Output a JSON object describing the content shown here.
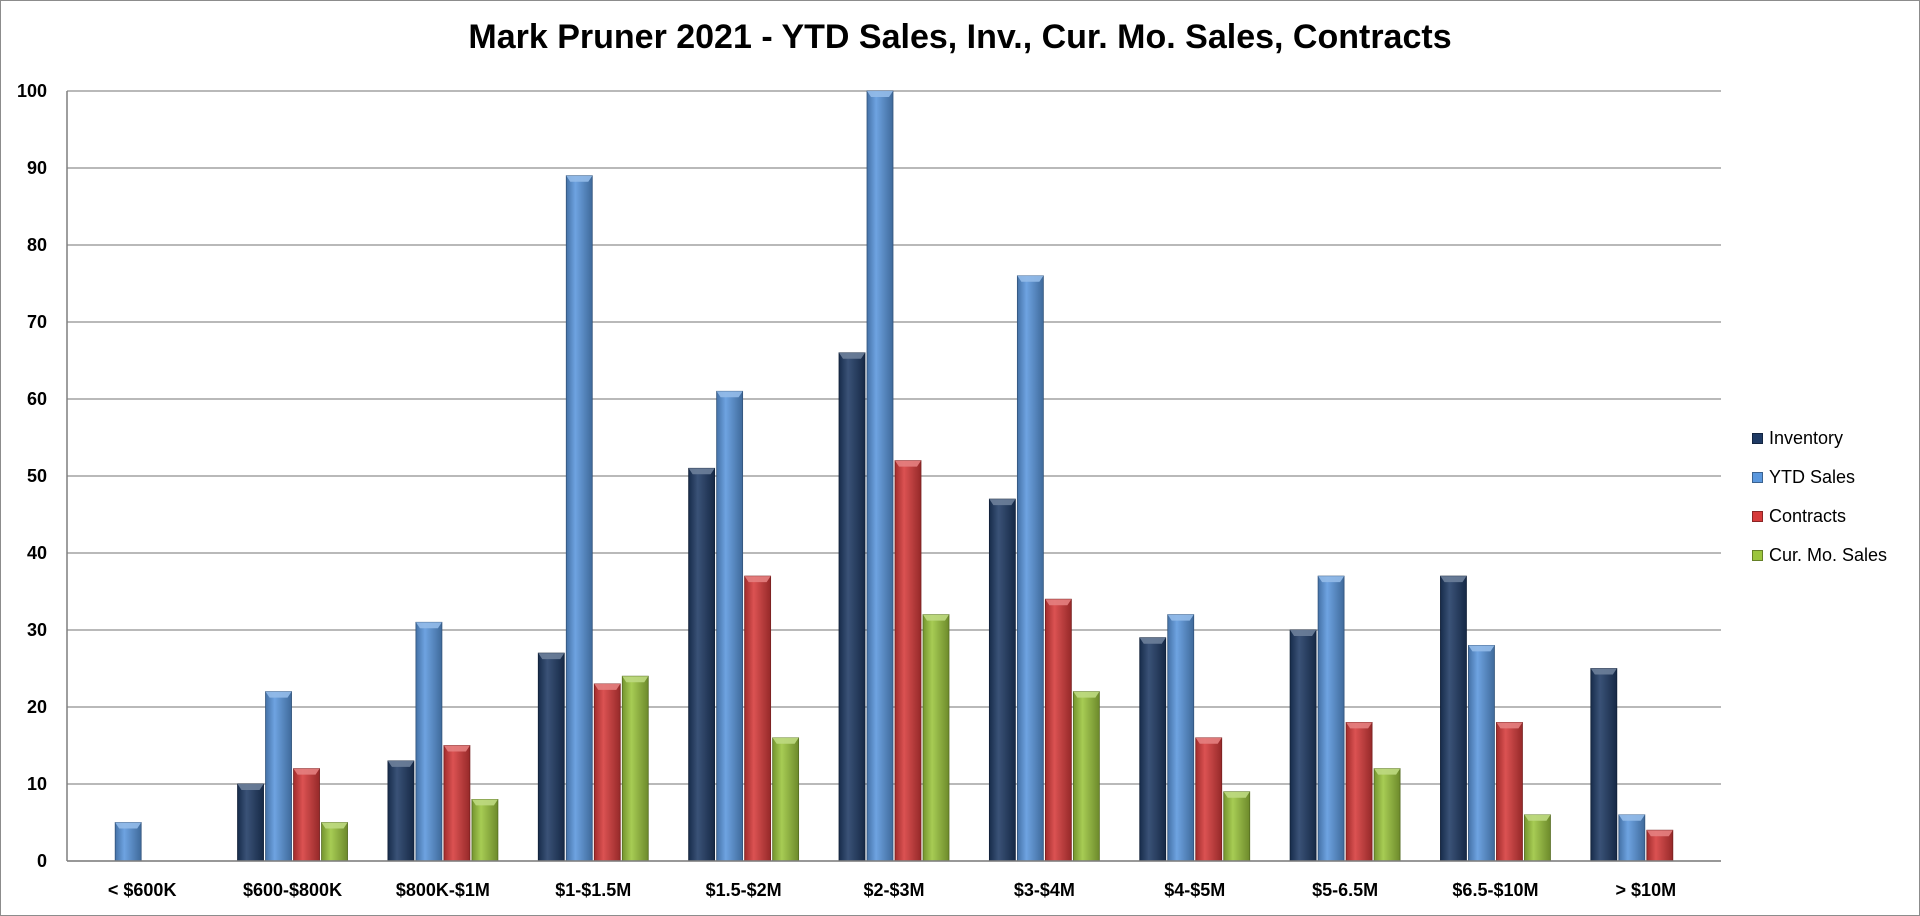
{
  "chart_data": {
    "type": "bar",
    "title": "Mark Pruner 2021 - YTD Sales, Inv., Cur. Mo. Sales, Contracts",
    "xlabel": "",
    "ylabel": "",
    "ylim": [
      0,
      100
    ],
    "yticks": [
      0,
      10,
      20,
      30,
      40,
      50,
      60,
      70,
      80,
      90,
      100
    ],
    "grid": true,
    "legend_position": "right",
    "categories": [
      "< $600K",
      "$600-$800K",
      "$800K-$1M",
      "$1-$1.5M",
      "$1.5-$2M",
      "$2-$3M",
      "$3-$4M",
      "$4-$5M",
      "$5-6.5M",
      "$6.5-$10M",
      "> $10M"
    ],
    "series": [
      {
        "name": "Inventory",
        "color": "#1f3a64",
        "values": [
          0,
          10,
          13,
          27,
          51,
          66,
          47,
          29,
          30,
          37,
          25
        ]
      },
      {
        "name": "YTD Sales",
        "color": "#5a97dd",
        "values": [
          5,
          22,
          31,
          89,
          61,
          100,
          76,
          32,
          37,
          28,
          6
        ]
      },
      {
        "name": "Contracts",
        "color": "#d63a3a",
        "values": [
          0,
          12,
          15,
          23,
          37,
          52,
          34,
          16,
          18,
          18,
          4
        ]
      },
      {
        "name": "Cur. Mo. Sales",
        "color": "#9bc53d",
        "values": [
          0,
          5,
          8,
          24,
          16,
          32,
          22,
          9,
          12,
          6,
          0
        ]
      }
    ]
  }
}
